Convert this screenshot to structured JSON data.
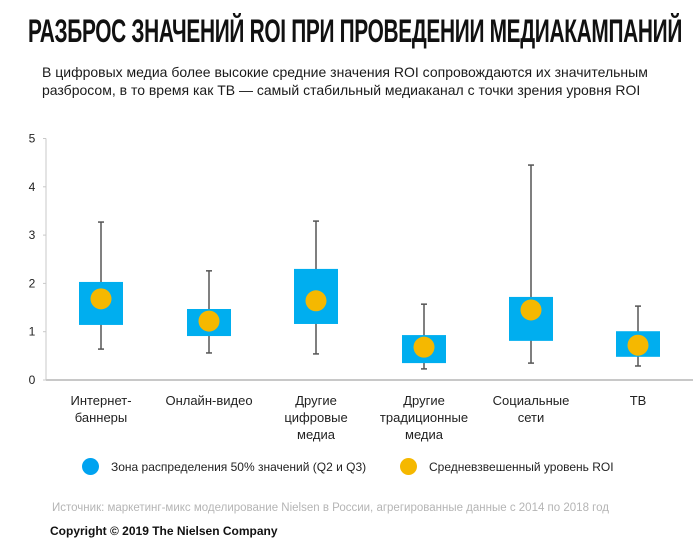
{
  "header": {
    "title": "РАЗБРОС ЗНАЧЕНИЙ ROI ПРИ ПРОВЕДЕНИИ МЕДИАКАМПАНИЙ",
    "subtitle_line1": "В цифровых медиа более высокие средние значения ROI сопровождаются их значительным",
    "subtitle_line2": "разбросом, в то время как ТВ — самый стабильный медиаканал с точки зрения уровня ROI"
  },
  "colors": {
    "box": "#00AEEF",
    "mean": "#F5B800",
    "whisker": "#555555",
    "axis": "#c8c8c8",
    "legend_box": "#00A3F0"
  },
  "chart_data": {
    "type": "boxplot",
    "title": "РАЗБРОС ЗНАЧЕНИЙ ROI ПРИ ПРОВЕДЕНИИ МЕДИАКАМПАНИЙ",
    "xlabel": "",
    "ylabel": "",
    "ylim": [
      0,
      5
    ],
    "yticks": [
      "0",
      "1",
      "2",
      "3",
      "4",
      "5"
    ],
    "grid": false,
    "legend_position": "bottom",
    "categories": [
      [
        "Интернет-",
        "баннеры"
      ],
      [
        "Онлайн-видео"
      ],
      [
        "Другие",
        "цифровые",
        "медиа"
      ],
      [
        "Другие",
        "традиционные",
        "медиа"
      ],
      [
        "Социальные",
        "сети"
      ],
      [
        "ТВ"
      ]
    ],
    "series": [
      {
        "name": "Зона распределения 50% значений (Q2 и Q3)",
        "q1": [
          1.14,
          0.91,
          1.16,
          0.35,
          0.81,
          0.48
        ],
        "q3": [
          2.03,
          1.47,
          2.3,
          0.93,
          1.72,
          1.01
        ]
      },
      {
        "name": "Средневзвешенный уровень ROI",
        "values": [
          1.68,
          1.22,
          1.64,
          0.68,
          1.45,
          0.72
        ]
      },
      {
        "name": "whisker_min",
        "values": [
          0.64,
          0.56,
          0.54,
          0.23,
          0.35,
          0.29
        ]
      },
      {
        "name": "whisker_max",
        "values": [
          3.27,
          2.26,
          3.29,
          1.57,
          4.45,
          1.53
        ]
      }
    ]
  },
  "legend": {
    "box_label": "Зона распределения 50% значений (Q2 и Q3)",
    "mean_label": "Средневзвешенный уровень ROI"
  },
  "footer": {
    "source": "Источник: маркетинг-микс моделирование Nielsen в России, агрегированные данные с 2014 по 2018 год",
    "copyright": "Copyright © 2019 The Nielsen Company"
  }
}
